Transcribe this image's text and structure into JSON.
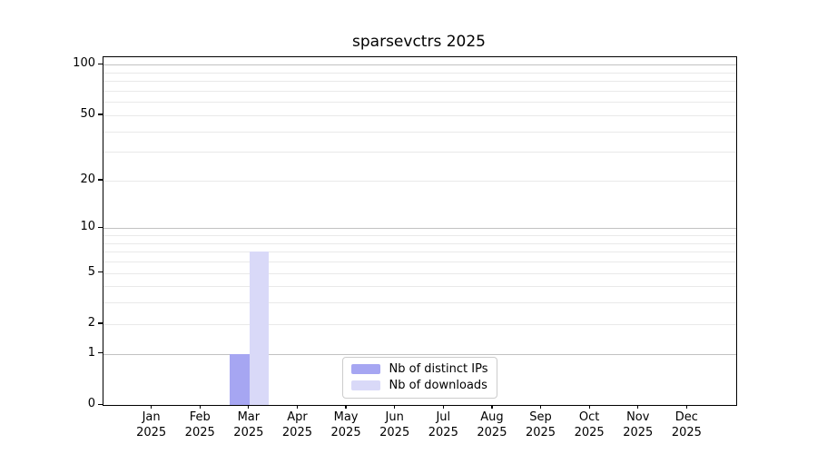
{
  "chart_data": {
    "type": "bar",
    "title": "sparsevctrs 2025",
    "categories": [
      "Jan",
      "Feb",
      "Mar",
      "Apr",
      "May",
      "Jun",
      "Jul",
      "Aug",
      "Sep",
      "Oct",
      "Nov",
      "Dec"
    ],
    "category_year": "2025",
    "series": [
      {
        "name": "Nb of distinct IPs",
        "color": "#a6a6f2",
        "values": [
          0,
          0,
          1,
          0,
          0,
          0,
          0,
          0,
          0,
          0,
          0,
          0
        ]
      },
      {
        "name": "Nb of downloads",
        "color": "#d9d9f8",
        "values": [
          0,
          0,
          7,
          0,
          0,
          0,
          0,
          0,
          0,
          0,
          0,
          0
        ]
      }
    ],
    "y_scale": "log1p",
    "y_ticks": [
      0,
      1,
      2,
      5,
      10,
      20,
      50,
      100
    ],
    "y_minor_ticks": [
      3,
      4,
      6,
      7,
      8,
      9,
      30,
      40,
      60,
      70,
      80,
      90
    ],
    "ylim": [
      0,
      111
    ],
    "grid": "both",
    "legend_position": "lower center",
    "colors": {
      "grid_decade": "#c2c2c2",
      "grid_light": "#e9e9e9",
      "spine": "#000000",
      "legend_border": "#cccccc",
      "text": "#000000",
      "background": "#ffffff"
    }
  }
}
